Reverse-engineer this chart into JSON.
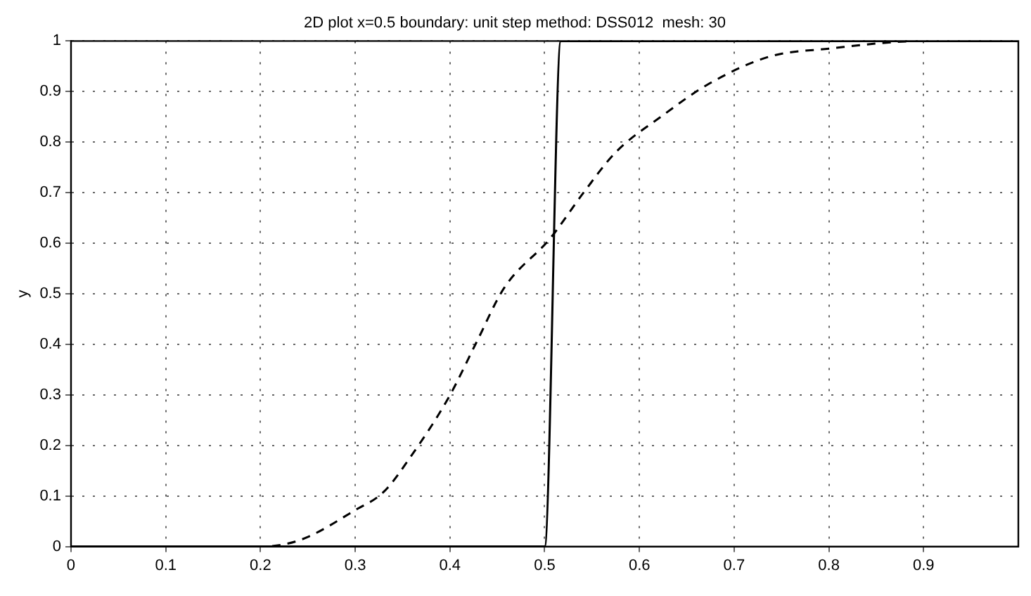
{
  "chart_data": {
    "type": "line",
    "title": "2D plot x=0.5 boundary: unit step method: DSS012  mesh: 30",
    "ylabel": "y",
    "series": [
      {
        "color": "#000000",
        "line_style": "solid",
        "x": [
          0,
          0.5,
          0.517,
          1
        ],
        "values": [
          0,
          0,
          1,
          1
        ]
      },
      {
        "color": "#000000",
        "line_style": "dashed",
        "x": [
          0,
          0.2,
          0.242,
          0.3,
          0.33,
          0.359,
          0.399,
          0.428,
          0.457,
          0.506,
          0.541,
          0.575,
          0.624,
          0.673,
          0.737,
          0.8,
          0.9,
          1
        ],
        "values": [
          0,
          0,
          0.013,
          0.072,
          0.108,
          0.179,
          0.296,
          0.404,
          0.511,
          0.61,
          0.7,
          0.78,
          0.852,
          0.915,
          0.969,
          0.985,
          1,
          1
        ]
      }
    ],
    "xlim": [
      0,
      1
    ],
    "xticks": [
      0,
      0.1,
      0.2,
      0.3,
      0.4,
      0.5,
      0.6,
      0.7,
      0.8,
      0.9
    ],
    "ylim": [
      0,
      1
    ],
    "yticks": [
      0,
      0.1,
      0.2,
      0.3,
      0.4,
      0.5,
      0.6,
      0.7,
      0.8,
      0.9,
      1
    ],
    "grid": true,
    "legend": false
  }
}
